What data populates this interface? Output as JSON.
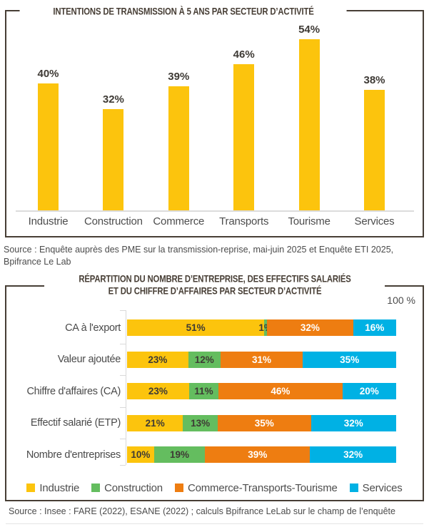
{
  "panel2": {
    "title_line1": "RÉPARTITION DU NOMBRE D’ENTREPRISE, DES EFFECTIFS SALARIÉS",
    "title_line2": "ET DU CHIFFRE D’AFFAIRES PAR SECTEUR D’ACTIVITÉ"
  },
  "colors": {
    "frame_and_title": "#473E35",
    "industrie_yellow": "#FCC40D",
    "construction_green": "#64BD5F",
    "commerce_orange": "#EE7D11",
    "services_blue": "#00B1E4",
    "axis_gray": "#D9D9D9",
    "dark_label": "#3E3A35",
    "text_gray": "#4D4D4D"
  },
  "chart_data": [
    {
      "type": "bar",
      "title": "INTENTIONS DE TRANSMISSION À 5 ANS PAR SECTEUR D’ACTIVITÉ",
      "categories": [
        "Industrie",
        "Construction",
        "Commerce",
        "Transports",
        "Tourisme",
        "Services"
      ],
      "values": [
        40,
        32,
        39,
        46,
        54,
        38
      ],
      "unit": "%",
      "bar_color": "#FCC40D",
      "value_label_color": "#3E3A35",
      "ylim": [
        0,
        60
      ],
      "grid": false,
      "source": "Source : Enquête auprès des PME sur la transmission-reprise, mai-juin 2025 et Enquête ETI 2025, Bpifrance Le Lab"
    },
    {
      "type": "bar",
      "subtype": "horizontal-stacked-100",
      "title": "RÉPARTITION DU NOMBRE D’ENTREPRISE, DES EFFECTIFS SALARIÉS ET DU CHIFFRE D’AFFAIRES PAR SECTEUR D’ACTIVITÉ",
      "axis_max_label": "100 %",
      "categories": [
        "CA à l'export",
        "Valeur ajoutée",
        "Chiffre d'affaires (CA)",
        "Effectif salarié (ETP)",
        "Nombre d'entreprises"
      ],
      "series": [
        {
          "name": "Industrie",
          "color": "#FCC40D",
          "text_color": "#3E3A35",
          "values": [
            51,
            23,
            23,
            21,
            10
          ]
        },
        {
          "name": "Construction",
          "color": "#64BD5F",
          "text_color": "#3E3A35",
          "values": [
            1,
            12,
            11,
            13,
            19
          ]
        },
        {
          "name": "Commerce-Transports-Tourisme",
          "color": "#EE7D11",
          "text_color": "#FFFFFF",
          "values": [
            32,
            31,
            46,
            35,
            39
          ]
        },
        {
          "name": "Services",
          "color": "#00B1E4",
          "text_color": "#FFFFFF",
          "values": [
            16,
            35,
            20,
            32,
            32
          ]
        }
      ],
      "unit": "%",
      "xlim": [
        0,
        100
      ],
      "grid": false,
      "legend_position": "bottom",
      "source": "Source : Insee : FARE (2022), ESANE (2022) ; calculs Bpifrance LeLab sur le champ de l’enquête"
    }
  ]
}
